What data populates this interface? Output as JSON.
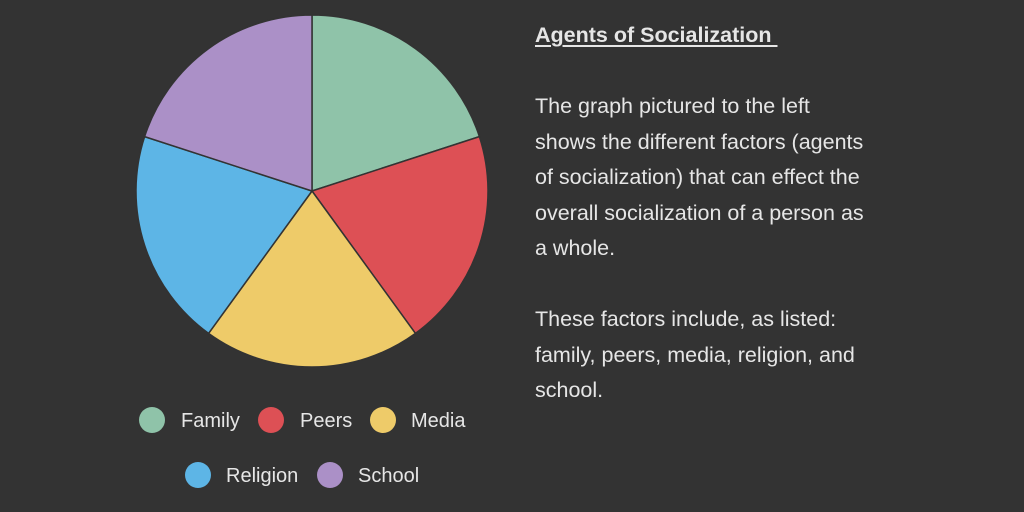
{
  "chart_data": {
    "type": "pie",
    "slices": [
      {
        "label": "Family",
        "value": 20,
        "color": "#8fc3a9"
      },
      {
        "label": "Peers",
        "value": 20,
        "color": "#dd5055"
      },
      {
        "label": "Media",
        "value": 20,
        "color": "#eecb69"
      },
      {
        "label": "Religion",
        "value": 20,
        "color": "#5db5e6"
      },
      {
        "label": "School",
        "value": 20,
        "color": "#ab90c7"
      }
    ],
    "legend_position": "bottom",
    "slice_border_color": "#333333"
  },
  "panel": {
    "title": "Agents of Socialization ",
    "paragraph_1": "The graph pictured to the left shows the different factors (agents of socialization) that can effect the overall socialization of a person as a whole.",
    "paragraph_2": "These factors include, as listed: family, peers, media, religion, and school."
  }
}
